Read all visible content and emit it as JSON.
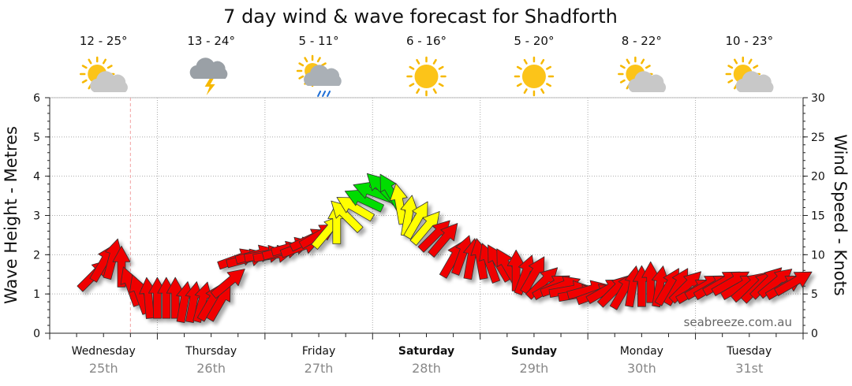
{
  "chart_data": {
    "type": "line",
    "title": "7 day wind & wave forecast for Shadforth",
    "ylabel_left": "Wave Height - Metres",
    "ylabel_right": "Wind Speed - Knots",
    "ylim_left": [
      0,
      6
    ],
    "ylim_right": [
      0,
      30
    ],
    "yticks_left": [
      "0",
      "1",
      "2",
      "3",
      "4",
      "5",
      "6"
    ],
    "yticks_right": [
      "0",
      "5",
      "10",
      "15",
      "20",
      "25",
      "30"
    ],
    "grid": true,
    "days": [
      {
        "name": "Wednesday",
        "date": "25th",
        "bold": false,
        "temp": "12 - 25°",
        "icon": "partly-cloudy-icon"
      },
      {
        "name": "Thursday",
        "date": "26th",
        "bold": false,
        "temp": "13 - 24°",
        "icon": "storm-icon"
      },
      {
        "name": "Friday",
        "date": "27th",
        "bold": false,
        "temp": "5 - 11°",
        "icon": "shower-icon"
      },
      {
        "name": "Saturday",
        "date": "28th",
        "bold": true,
        "temp": "6 - 16°",
        "icon": "sunny-icon"
      },
      {
        "name": "Sunday",
        "date": "29th",
        "bold": true,
        "temp": "5 - 20°",
        "icon": "sunny-icon"
      },
      {
        "name": "Monday",
        "date": "30th",
        "bold": false,
        "temp": "8 - 22°",
        "icon": "partly-cloudy-icon"
      },
      {
        "name": "Tuesday",
        "date": "31st",
        "bold": false,
        "temp": "10 - 23°",
        "icon": "partly-cloudy-icon"
      }
    ],
    "series": [
      {
        "name": "Wind Speed",
        "unit": "knots",
        "x_hours": [
          10,
          12,
          14,
          16,
          18,
          20,
          22,
          24,
          26,
          28,
          30,
          32,
          34,
          36,
          38,
          40,
          42,
          44,
          46,
          48,
          50,
          52,
          54,
          56,
          58,
          60,
          62,
          64,
          66,
          68,
          70,
          72,
          74,
          76,
          78,
          80,
          82,
          84,
          86,
          88,
          90,
          92,
          94,
          96,
          98,
          100,
          102,
          104,
          106,
          108,
          110,
          112,
          114,
          116,
          118,
          120,
          122,
          124,
          126,
          128,
          130,
          132,
          134,
          136,
          138,
          140,
          142,
          144,
          146,
          148,
          150,
          152,
          154,
          156,
          158,
          160,
          162,
          164,
          166
        ],
        "values": [
          7.5,
          9,
          9.5,
          8.5,
          6,
          5,
          4.5,
          4.5,
          4.5,
          4.5,
          4,
          4,
          4,
          4,
          4,
          6.5,
          9.5,
          9.5,
          10,
          10,
          10,
          10.5,
          11,
          11,
          12,
          12.5,
          13,
          14,
          15,
          16,
          17,
          18,
          18.5,
          18,
          16.5,
          15,
          14.5,
          13.5,
          12.5,
          12,
          9.5,
          10,
          9.5,
          9.5,
          9,
          9,
          8.5,
          8,
          7.5,
          7.5,
          6.5,
          6,
          6,
          5.5,
          5,
          5.5,
          5,
          5.5,
          5.5,
          5.5,
          6,
          6,
          6.5,
          6,
          6,
          6,
          6,
          5.5,
          6,
          6,
          6.5,
          6.5,
          6,
          6,
          6,
          6.5,
          6.5,
          6,
          6.5
        ],
        "direction_deg": [
          45,
          60,
          75,
          90,
          110,
          110,
          95,
          90,
          90,
          90,
          80,
          80,
          75,
          60,
          60,
          40,
          20,
          15,
          15,
          10,
          10,
          15,
          15,
          20,
          25,
          30,
          50,
          90,
          135,
          150,
          155,
          160,
          135,
          120,
          100,
          80,
          60,
          50,
          45,
          50,
          60,
          70,
          80,
          100,
          110,
          120,
          120,
          90,
          70,
          60,
          45,
          30,
          20,
          10,
          10,
          15,
          20,
          30,
          45,
          60,
          80,
          90,
          90,
          80,
          60,
          60,
          45,
          30,
          30,
          30,
          30,
          30,
          30,
          40,
          45,
          45,
          40,
          30,
          30
        ],
        "colors": {
          "light": "#f00000",
          "moderate": "#ffff00",
          "strong": "#00dd00"
        }
      }
    ]
  },
  "brand": "seabreeze.com.au",
  "now_marker_hour": 18
}
